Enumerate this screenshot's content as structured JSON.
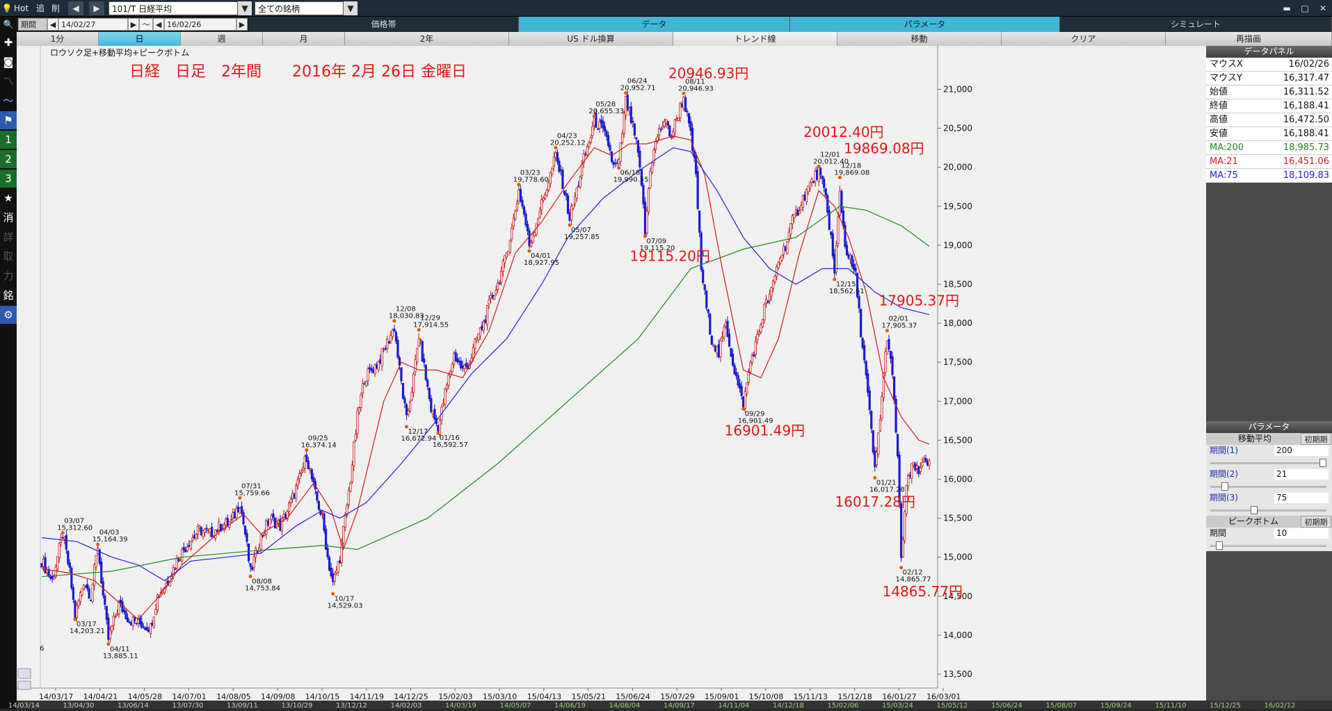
{
  "toolbar": {
    "hot": "Hot",
    "btn_add": "追",
    "btn_del": "削",
    "symbol": "101/T 日経平均",
    "universe": "全ての銘柄"
  },
  "period": {
    "label": "期間",
    "from": "14/02/27",
    "sep": "～",
    "to": "16/02/26"
  },
  "main_tabs": [
    "価格帯",
    "データ",
    "パラメータ",
    "シミュレート"
  ],
  "sub_tabs": [
    "1分",
    "日",
    "週",
    "月",
    "2年",
    "US ドル換算",
    "トレンド線",
    "移動",
    "クリア",
    "再描画"
  ],
  "sidebar_icons": [
    "search-icon",
    "plus-icon",
    "camera-icon",
    "chart-icon",
    "line-icon",
    "flag-icon",
    "1",
    "2",
    "3",
    "★",
    "消",
    "詳",
    "取",
    "力",
    "銘",
    "gear-icon"
  ],
  "chart_title": "ロウソク足+移動平均+ピークボトム",
  "chart_data": {
    "type": "line",
    "title": "ロウソク足+移動平均+ピークボトム",
    "ylim": [
      13500,
      21200
    ],
    "yticks": [
      13500,
      14000,
      14500,
      15000,
      15500,
      16000,
      16500,
      17000,
      17500,
      18000,
      18500,
      19000,
      19500,
      20000,
      20500,
      21000
    ],
    "xlabels": [
      "14/03/17",
      "14/04/21",
      "14/05/28",
      "14/07/01",
      "14/08/05",
      "14/09/08",
      "14/10/15",
      "14/11/19",
      "14/12/25",
      "15/02/03",
      "15/03/10",
      "15/04/13",
      "15/05/21",
      "15/06/24",
      "15/07/29",
      "15/09/01",
      "15/10/08",
      "15/11/13",
      "15/12/18",
      "16/01/27",
      "16/03/01"
    ],
    "overview_labels": [
      "14/03/14",
      "13/04/30",
      "13/06/14",
      "13/07/30",
      "13/09/11",
      "13/10/29",
      "13/12/12",
      "14/02/03",
      "14/03/19",
      "14/05/07",
      "14/06/19",
      "14/08/04",
      "14/09/17",
      "14/11/04",
      "14/12/18",
      "15/02/06",
      "15/03/24",
      "15/05/12",
      "15/06/24",
      "15/08/07",
      "15/09/24",
      "15/11/10",
      "15/12/25",
      "16/02/12"
    ],
    "leftcut_label": "6",
    "peaks": [
      {
        "d": "03/07",
        "v": "15,312.60",
        "x": 12,
        "y": 15312.6,
        "up": true
      },
      {
        "d": "03/17",
        "v": "14,203.21",
        "x": 19,
        "y": 14203.21,
        "up": false
      },
      {
        "d": "04/03",
        "v": "15,164.39",
        "x": 32,
        "y": 15164.39,
        "up": true
      },
      {
        "d": "04/11",
        "v": "13,885.11",
        "x": 38,
        "y": 13885.11,
        "up": false
      },
      {
        "d": "07/31",
        "v": "15,759.66",
        "x": 113,
        "y": 15759.66,
        "up": true
      },
      {
        "d": "08/08",
        "v": "14,753.84",
        "x": 119,
        "y": 14753.84,
        "up": false
      },
      {
        "d": "09/25",
        "v": "16,374.14",
        "x": 151,
        "y": 16374.14,
        "up": true
      },
      {
        "d": "10/17",
        "v": "14,529.03",
        "x": 166,
        "y": 14529.03,
        "up": false
      },
      {
        "d": "12/08",
        "v": "18,030.83",
        "x": 201,
        "y": 18030.83,
        "up": true
      },
      {
        "d": "12/17",
        "v": "16,672.94",
        "x": 208,
        "y": 16672.94,
        "up": false
      },
      {
        "d": "12/29",
        "v": "17,914.55",
        "x": 215,
        "y": 17914.55,
        "up": true
      },
      {
        "d": "01/16",
        "v": "16,592.57",
        "x": 226,
        "y": 16592.57,
        "up": false
      },
      {
        "d": "03/23",
        "v": "19,778.60",
        "x": 272,
        "y": 19778.6,
        "up": true
      },
      {
        "d": "04/01",
        "v": "18,927.95",
        "x": 278,
        "y": 18927.95,
        "up": false
      },
      {
        "d": "04/23",
        "v": "20,252.12",
        "x": 293,
        "y": 20252.12,
        "up": true
      },
      {
        "d": "05/07",
        "v": "19,257.85",
        "x": 301,
        "y": 19257.85,
        "up": false
      },
      {
        "d": "05/28",
        "v": "20,655.33",
        "x": 315,
        "y": 20655.33,
        "up": true
      },
      {
        "d": "06/18",
        "v": "19,990.55",
        "x": 329,
        "y": 19990.55,
        "up": false
      },
      {
        "d": "06/24",
        "v": "20,952.71",
        "x": 333,
        "y": 20952.71,
        "up": true
      },
      {
        "d": "07/09",
        "v": "19,115.20",
        "x": 344,
        "y": 19115.2,
        "up": false
      },
      {
        "d": "08/11",
        "v": "20,946.93",
        "x": 366,
        "y": 20946.93,
        "up": true
      },
      {
        "d": "09/29",
        "v": "16,901.49",
        "x": 400,
        "y": 16901.49,
        "up": false
      },
      {
        "d": "12/01",
        "v": "20,012.40",
        "x": 443,
        "y": 20012.4,
        "up": true
      },
      {
        "d": "12/15",
        "v": "18,562.61",
        "x": 452,
        "y": 18562.61,
        "up": false
      },
      {
        "d": "12/18",
        "v": "19,869.08",
        "x": 455,
        "y": 19869.08,
        "up": true
      },
      {
        "d": "01/21",
        "v": "16,017.28",
        "x": 475,
        "y": 16017.28,
        "up": false
      },
      {
        "d": "02/01",
        "v": "17,905.37",
        "x": 482,
        "y": 17905.37,
        "up": true
      },
      {
        "d": "02/12",
        "v": "14,865.77",
        "x": 490,
        "y": 14865.77,
        "up": false
      }
    ],
    "close_path": [
      [
        0,
        14950
      ],
      [
        6,
        14700
      ],
      [
        12,
        15300
      ],
      [
        16,
        14800
      ],
      [
        19,
        14250
      ],
      [
        24,
        14700
      ],
      [
        28,
        14500
      ],
      [
        32,
        15150
      ],
      [
        35,
        14500
      ],
      [
        38,
        13950
      ],
      [
        44,
        14400
      ],
      [
        50,
        14200
      ],
      [
        56,
        14150
      ],
      [
        62,
        14100
      ],
      [
        66,
        14500
      ],
      [
        72,
        14700
      ],
      [
        78,
        15000
      ],
      [
        84,
        15200
      ],
      [
        90,
        15350
      ],
      [
        96,
        15300
      ],
      [
        102,
        15400
      ],
      [
        108,
        15450
      ],
      [
        113,
        15700
      ],
      [
        116,
        15300
      ],
      [
        119,
        14800
      ],
      [
        124,
        15200
      ],
      [
        130,
        15500
      ],
      [
        136,
        15400
      ],
      [
        142,
        15700
      ],
      [
        147,
        16000
      ],
      [
        151,
        16300
      ],
      [
        156,
        15800
      ],
      [
        160,
        15500
      ],
      [
        163,
        15000
      ],
      [
        166,
        14650
      ],
      [
        170,
        15000
      ],
      [
        173,
        15500
      ],
      [
        176,
        16000
      ],
      [
        180,
        16800
      ],
      [
        184,
        17300
      ],
      [
        188,
        17400
      ],
      [
        192,
        17500
      ],
      [
        196,
        17700
      ],
      [
        201,
        17950
      ],
      [
        204,
        17400
      ],
      [
        208,
        16750
      ],
      [
        212,
        17300
      ],
      [
        215,
        17850
      ],
      [
        219,
        17300
      ],
      [
        222,
        16900
      ],
      [
        226,
        16650
      ],
      [
        230,
        17100
      ],
      [
        235,
        17600
      ],
      [
        240,
        17400
      ],
      [
        244,
        17500
      ],
      [
        248,
        17800
      ],
      [
        252,
        18000
      ],
      [
        256,
        18300
      ],
      [
        260,
        18500
      ],
      [
        264,
        18800
      ],
      [
        268,
        19200
      ],
      [
        272,
        19700
      ],
      [
        275,
        19400
      ],
      [
        278,
        19000
      ],
      [
        282,
        19300
      ],
      [
        286,
        19600
      ],
      [
        290,
        19900
      ],
      [
        293,
        20150
      ],
      [
        297,
        19800
      ],
      [
        301,
        19350
      ],
      [
        305,
        19700
      ],
      [
        309,
        20100
      ],
      [
        313,
        20400
      ],
      [
        315,
        20600
      ],
      [
        319,
        20500
      ],
      [
        323,
        20300
      ],
      [
        326,
        20000
      ],
      [
        329,
        20050
      ],
      [
        333,
        20850
      ],
      [
        336,
        20600
      ],
      [
        339,
        20300
      ],
      [
        342,
        19800
      ],
      [
        344,
        19150
      ],
      [
        347,
        20000
      ],
      [
        351,
        20400
      ],
      [
        355,
        20600
      ],
      [
        359,
        20400
      ],
      [
        363,
        20700
      ],
      [
        366,
        20900
      ],
      [
        370,
        20400
      ],
      [
        373,
        19900
      ],
      [
        376,
        18700
      ],
      [
        379,
        18200
      ],
      [
        382,
        17800
      ],
      [
        386,
        17600
      ],
      [
        390,
        18000
      ],
      [
        394,
        17500
      ],
      [
        397,
        17200
      ],
      [
        400,
        16950
      ],
      [
        404,
        17500
      ],
      [
        408,
        17800
      ],
      [
        412,
        18200
      ],
      [
        416,
        18400
      ],
      [
        420,
        18800
      ],
      [
        424,
        19000
      ],
      [
        428,
        19300
      ],
      [
        432,
        19500
      ],
      [
        436,
        19700
      ],
      [
        440,
        19850
      ],
      [
        443,
        19950
      ],
      [
        447,
        19600
      ],
      [
        450,
        19100
      ],
      [
        452,
        18600
      ],
      [
        455,
        19700
      ],
      [
        458,
        19000
      ],
      [
        461,
        18800
      ],
      [
        464,
        18600
      ],
      [
        467,
        17900
      ],
      [
        470,
        17300
      ],
      [
        473,
        16600
      ],
      [
        475,
        16100
      ],
      [
        478,
        16800
      ],
      [
        482,
        17850
      ],
      [
        485,
        17300
      ],
      [
        488,
        16300
      ],
      [
        490,
        14950
      ],
      [
        493,
        15900
      ],
      [
        497,
        16200
      ],
      [
        500,
        16050
      ],
      [
        503,
        16300
      ],
      [
        506,
        16188
      ]
    ],
    "series": [
      {
        "name": "MA:200",
        "color": "#1a8a1a",
        "values": [
          [
            0,
            14750
          ],
          [
            40,
            14820
          ],
          [
            80,
            15000
          ],
          [
            120,
            15080
          ],
          [
            160,
            15150
          ],
          [
            180,
            15100
          ],
          [
            220,
            15500
          ],
          [
            260,
            16200
          ],
          [
            300,
            17000
          ],
          [
            340,
            17800
          ],
          [
            370,
            18700
          ],
          [
            400,
            18950
          ],
          [
            430,
            19100
          ],
          [
            455,
            19500
          ],
          [
            470,
            19450
          ],
          [
            490,
            19250
          ],
          [
            506,
            18986
          ]
        ]
      },
      {
        "name": "MA:21",
        "color": "#d01c1c",
        "values": [
          [
            0,
            14850
          ],
          [
            15,
            14800
          ],
          [
            30,
            14700
          ],
          [
            45,
            14400
          ],
          [
            55,
            14200
          ],
          [
            65,
            14450
          ],
          [
            80,
            14900
          ],
          [
            100,
            15300
          ],
          [
            115,
            15550
          ],
          [
            125,
            15300
          ],
          [
            140,
            15500
          ],
          [
            155,
            15950
          ],
          [
            165,
            15600
          ],
          [
            172,
            15100
          ],
          [
            180,
            15600
          ],
          [
            195,
            17000
          ],
          [
            205,
            17500
          ],
          [
            215,
            17400
          ],
          [
            225,
            17400
          ],
          [
            240,
            17300
          ],
          [
            255,
            17900
          ],
          [
            270,
            18900
          ],
          [
            285,
            19300
          ],
          [
            300,
            19800
          ],
          [
            315,
            20250
          ],
          [
            325,
            20150
          ],
          [
            335,
            20300
          ],
          [
            345,
            20300
          ],
          [
            360,
            20400
          ],
          [
            370,
            20350
          ],
          [
            378,
            19900
          ],
          [
            388,
            18700
          ],
          [
            400,
            17400
          ],
          [
            410,
            17300
          ],
          [
            420,
            17800
          ],
          [
            432,
            18900
          ],
          [
            443,
            19700
          ],
          [
            452,
            19500
          ],
          [
            460,
            19100
          ],
          [
            470,
            18400
          ],
          [
            480,
            17300
          ],
          [
            490,
            16800
          ],
          [
            500,
            16500
          ],
          [
            506,
            16451
          ]
        ]
      },
      {
        "name": "MA:75",
        "color": "#2323c8",
        "values": [
          [
            0,
            15250
          ],
          [
            20,
            15200
          ],
          [
            40,
            15000
          ],
          [
            55,
            14900
          ],
          [
            70,
            14700
          ],
          [
            85,
            14950
          ],
          [
            105,
            15000
          ],
          [
            125,
            15050
          ],
          [
            145,
            15400
          ],
          [
            160,
            15600
          ],
          [
            170,
            15500
          ],
          [
            185,
            15700
          ],
          [
            205,
            16200
          ],
          [
            225,
            16750
          ],
          [
            245,
            17350
          ],
          [
            265,
            17800
          ],
          [
            285,
            18500
          ],
          [
            300,
            19100
          ],
          [
            320,
            19600
          ],
          [
            340,
            19950
          ],
          [
            360,
            20250
          ],
          [
            370,
            20200
          ],
          [
            385,
            19700
          ],
          [
            400,
            19100
          ],
          [
            415,
            18700
          ],
          [
            430,
            18500
          ],
          [
            445,
            18700
          ],
          [
            460,
            18700
          ],
          [
            475,
            18400
          ],
          [
            490,
            18200
          ],
          [
            506,
            18110
          ]
        ]
      }
    ],
    "annotations": [
      {
        "t": "20946.93円",
        "x": 366,
        "y": 21140
      },
      {
        "t": "20012.40円",
        "x": 443,
        "y": 20390
      },
      {
        "t": "19869.08円",
        "x": 466,
        "y": 20180
      },
      {
        "t": "19115.20円",
        "x": 344,
        "y": 18800
      },
      {
        "t": "17905.37円",
        "x": 486,
        "y": 18230
      },
      {
        "t": "16901.49円",
        "x": 398,
        "y": 16560
      },
      {
        "t": "16017.28円",
        "x": 461,
        "y": 15650
      },
      {
        "t": "14865.77円",
        "x": 488,
        "y": 14500
      }
    ],
    "subtitle": "日経　日足　2年間　　2016年 2月 26日 金曜日"
  },
  "data_panel": {
    "title": "データパネル",
    "rows": [
      {
        "k": "マウスX",
        "v": "16/02/26",
        "c": "#111"
      },
      {
        "k": "マウスY",
        "v": "16,317.47",
        "c": "#111"
      },
      {
        "k": "始値",
        "v": "16,311.52",
        "c": "#111"
      },
      {
        "k": "終値",
        "v": "16,188.41",
        "c": "#111"
      },
      {
        "k": "高値",
        "v": "16,472.50",
        "c": "#111"
      },
      {
        "k": "安値",
        "v": "16,188.41",
        "c": "#111"
      },
      {
        "k": "MA:200",
        "v": "18,985.73",
        "c": "#1a8a1a"
      },
      {
        "k": "MA:21",
        "v": "16,451.06",
        "c": "#d01c1c"
      },
      {
        "k": "MA:75",
        "v": "18,109.83",
        "c": "#2323c8"
      }
    ]
  },
  "params": {
    "title": "パラメータ",
    "ma_title": "移動平均",
    "reset": "初期期",
    "p1_label": "期間(1)",
    "p1": "200",
    "p2_label": "期間(2)",
    "p2": "21",
    "p3_label": "期間(3)",
    "p3": "75",
    "pb_title": "ピークボトム",
    "pb_label": "期間",
    "pb": "10",
    "slider_levels": [
      1.0,
      0.1,
      0.37,
      0.05
    ]
  }
}
